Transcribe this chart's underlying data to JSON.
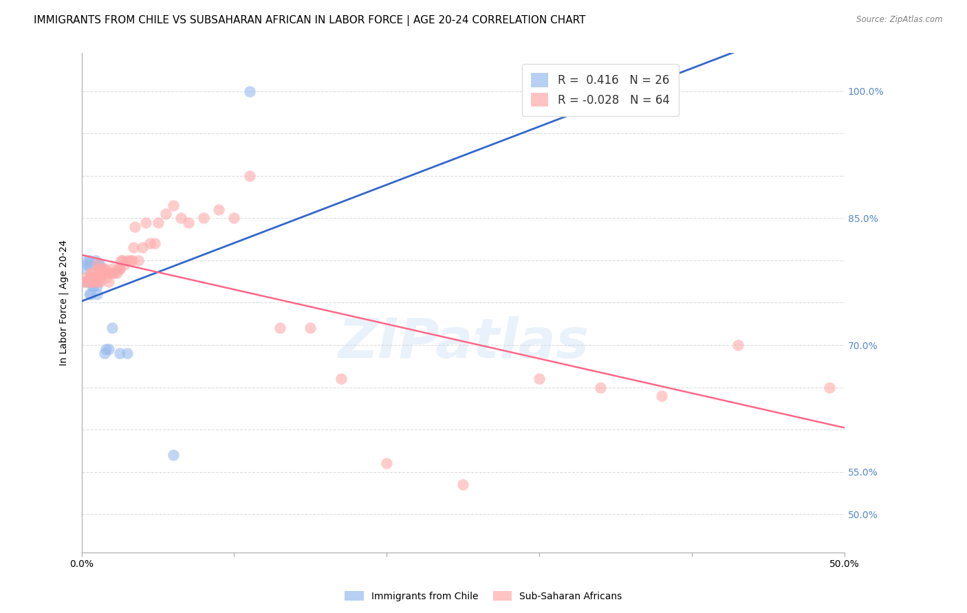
{
  "title": "IMMIGRANTS FROM CHILE VS SUBSAHARAN AFRICAN IN LABOR FORCE | AGE 20-24 CORRELATION CHART",
  "source": "Source: ZipAtlas.com",
  "xlabel": "",
  "ylabel": "In Labor Force | Age 20-24",
  "watermark": "ZIPatlas",
  "chile_r": 0.416,
  "chile_n": 26,
  "subsaharan_r": -0.028,
  "subsaharan_n": 64,
  "x_min": 0.0,
  "x_max": 0.5,
  "y_min": 0.455,
  "y_max": 1.045,
  "x_ticks": [
    0.0,
    0.1,
    0.2,
    0.3,
    0.4,
    0.5
  ],
  "x_tick_labels": [
    "0.0%",
    "",
    "",
    "",
    "",
    "50.0%"
  ],
  "y_ticks": [
    0.5,
    0.55,
    0.6,
    0.65,
    0.7,
    0.75,
    0.8,
    0.85,
    0.9,
    0.95,
    1.0
  ],
  "y_tick_labels_right": {
    "0.50": "50.0%",
    "0.55": "55.0%",
    "0.60": "",
    "0.65": "",
    "0.70": "70.0%",
    "0.75": "",
    "0.80": "",
    "0.85": "85.0%",
    "0.90": "",
    "0.95": "",
    "1.00": "100.0%"
  },
  "chile_points_x": [
    0.002,
    0.003,
    0.004,
    0.004,
    0.005,
    0.005,
    0.005,
    0.006,
    0.006,
    0.007,
    0.007,
    0.008,
    0.009,
    0.01,
    0.01,
    0.011,
    0.012,
    0.013,
    0.015,
    0.016,
    0.018,
    0.02,
    0.025,
    0.03,
    0.06,
    0.11
  ],
  "chile_points_y": [
    0.775,
    0.79,
    0.795,
    0.8,
    0.795,
    0.8,
    0.76,
    0.78,
    0.76,
    0.78,
    0.77,
    0.77,
    0.8,
    0.77,
    0.76,
    0.795,
    0.795,
    0.79,
    0.69,
    0.695,
    0.695,
    0.72,
    0.69,
    0.69,
    0.57,
    1.0
  ],
  "subsaharan_points_x": [
    0.002,
    0.003,
    0.004,
    0.005,
    0.006,
    0.006,
    0.007,
    0.007,
    0.008,
    0.008,
    0.009,
    0.01,
    0.01,
    0.011,
    0.011,
    0.012,
    0.012,
    0.013,
    0.014,
    0.015,
    0.015,
    0.016,
    0.017,
    0.018,
    0.019,
    0.02,
    0.02,
    0.022,
    0.023,
    0.024,
    0.025,
    0.025,
    0.026,
    0.027,
    0.028,
    0.03,
    0.032,
    0.033,
    0.034,
    0.035,
    0.037,
    0.04,
    0.042,
    0.045,
    0.048,
    0.05,
    0.055,
    0.06,
    0.065,
    0.07,
    0.08,
    0.09,
    0.1,
    0.11,
    0.13,
    0.15,
    0.17,
    0.2,
    0.25,
    0.3,
    0.34,
    0.38,
    0.43,
    0.49
  ],
  "subsaharan_points_y": [
    0.775,
    0.78,
    0.775,
    0.78,
    0.775,
    0.785,
    0.775,
    0.785,
    0.78,
    0.775,
    0.78,
    0.785,
    0.795,
    0.79,
    0.775,
    0.775,
    0.78,
    0.785,
    0.79,
    0.785,
    0.79,
    0.78,
    0.785,
    0.775,
    0.785,
    0.785,
    0.79,
    0.785,
    0.785,
    0.79,
    0.79,
    0.79,
    0.8,
    0.8,
    0.795,
    0.8,
    0.8,
    0.8,
    0.815,
    0.84,
    0.8,
    0.815,
    0.845,
    0.82,
    0.82,
    0.845,
    0.855,
    0.865,
    0.85,
    0.845,
    0.85,
    0.86,
    0.85,
    0.9,
    0.72,
    0.72,
    0.66,
    0.56,
    0.535,
    0.66,
    0.65,
    0.64,
    0.7,
    0.65
  ],
  "chile_line_color": "#3366CC",
  "subsaharan_line_color": "#FF6688",
  "chile_color": "#99BBEE",
  "subsaharan_color": "#FFAAAA",
  "background_color": "#FFFFFF",
  "grid_color": "#DDDDDD",
  "right_axis_color": "#5588CC",
  "title_fontsize": 11,
  "axis_label_fontsize": 10,
  "tick_fontsize": 10,
  "legend_fontsize": 12
}
